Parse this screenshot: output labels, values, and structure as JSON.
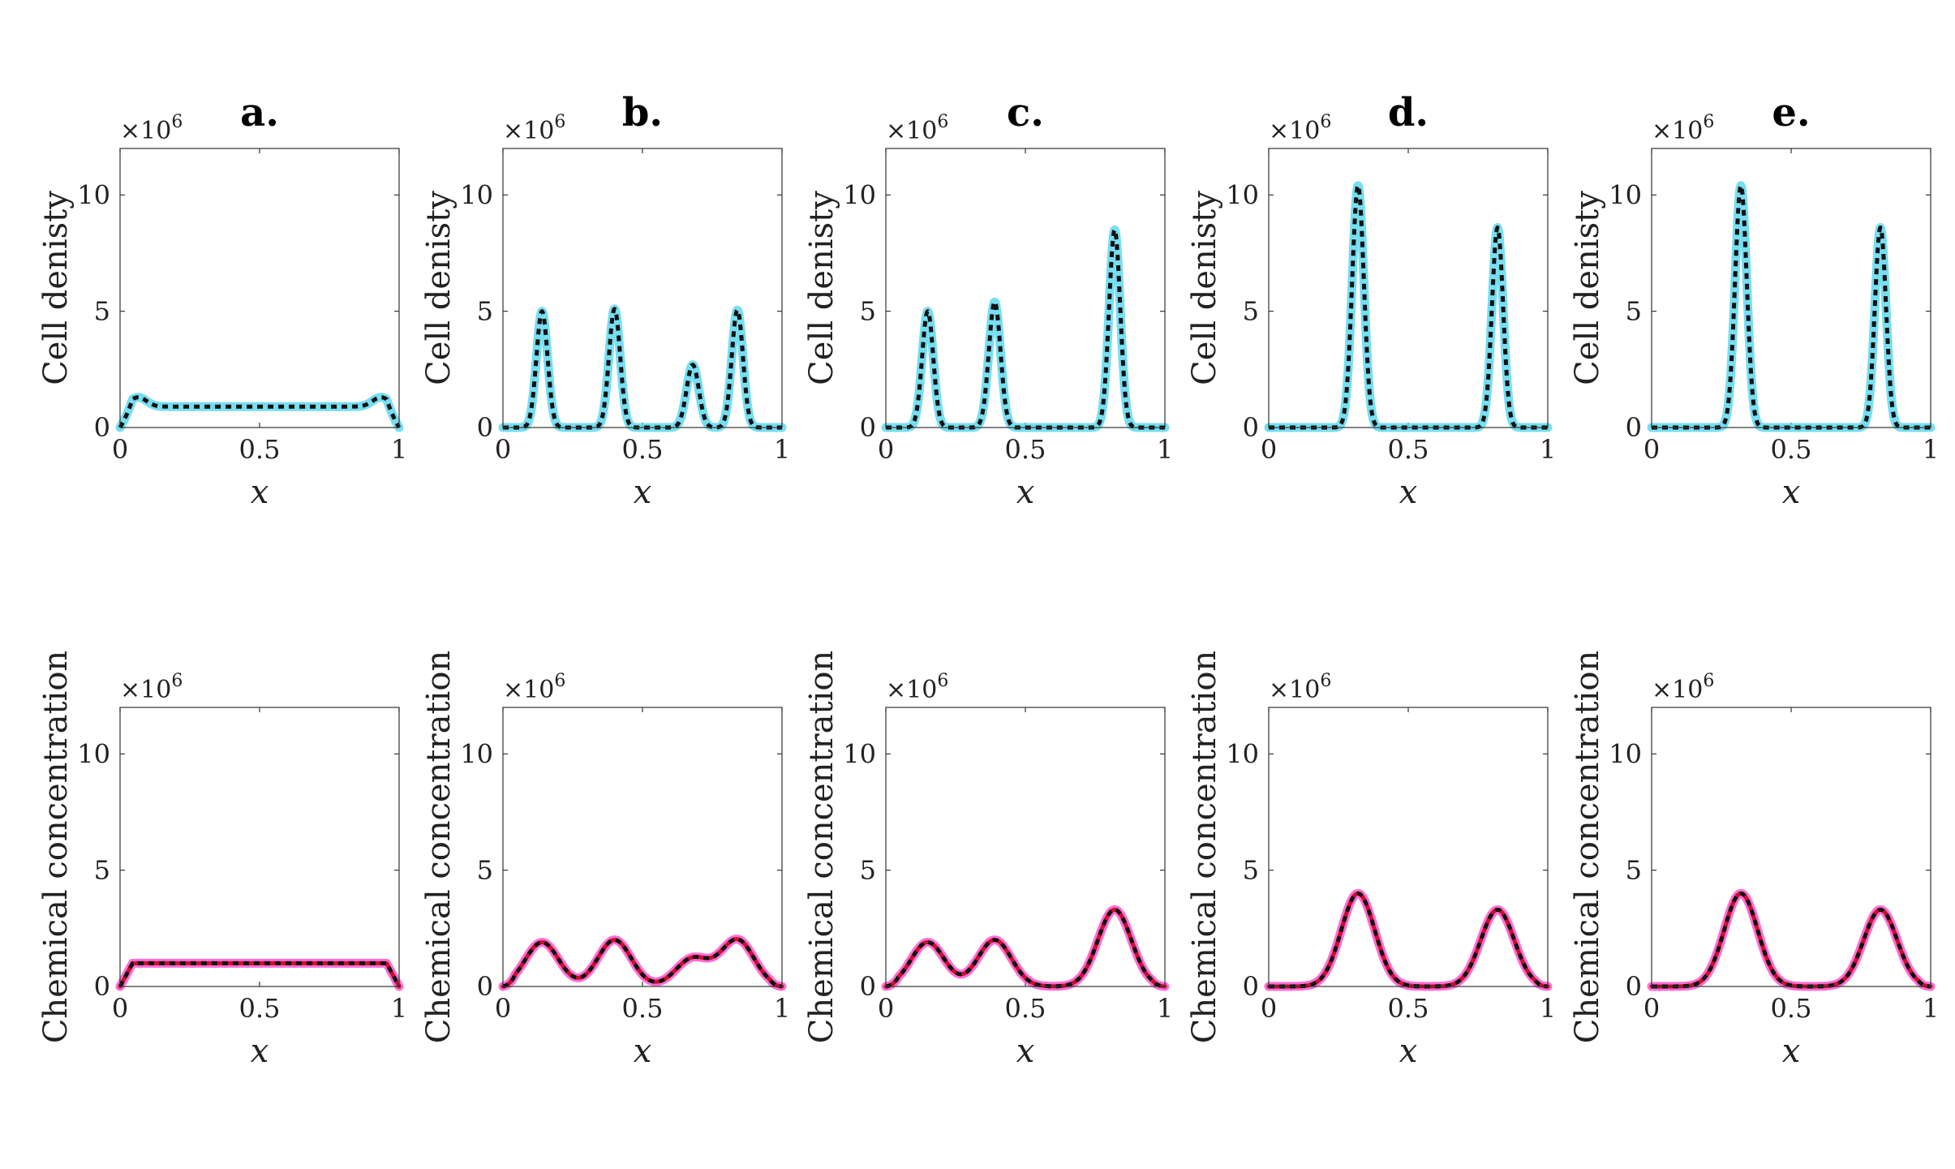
{
  "chart_data": {
    "type": "line",
    "layout": "2 rows x 5 columns of line plots",
    "shared": {
      "x_domain": [
        0,
        1
      ],
      "xticks": [
        0,
        0.5,
        1
      ],
      "xtick_labels": [
        "0",
        "0.5",
        "1"
      ],
      "xlabel": "x",
      "ylim": [
        0,
        12
      ],
      "yticks": [
        0,
        5,
        10
      ],
      "ytick_labels": [
        "0",
        "5",
        "10"
      ],
      "y_multiplier_label": "×10",
      "y_multiplier_exponent": "6"
    },
    "rows": [
      {
        "ylabel": "Cell denisty",
        "color_solid": "#5fd8ee",
        "color_dashed": "#111111",
        "panels": [
          {
            "title": "a.",
            "base": 0.9,
            "edge_bump": 1.3,
            "peaks": []
          },
          {
            "title": "b.",
            "base": 0.0,
            "edge_bump": 0,
            "peaks": [
              [
                0.14,
                5.0,
                0.02
              ],
              [
                0.4,
                5.1,
                0.02
              ],
              [
                0.68,
                2.7,
                0.022
              ],
              [
                0.84,
                5.05,
                0.02
              ]
            ]
          },
          {
            "title": "c.",
            "base": 0.0,
            "edge_bump": 0,
            "peaks": [
              [
                0.15,
                5.0,
                0.02
              ],
              [
                0.39,
                5.4,
                0.021
              ],
              [
                0.82,
                8.5,
                0.02
              ]
            ]
          },
          {
            "title": "d.",
            "base": 0.0,
            "edge_bump": 0,
            "peaks": [
              [
                0.32,
                10.4,
                0.021
              ],
              [
                0.82,
                8.6,
                0.02
              ]
            ]
          },
          {
            "title": "e.",
            "base": 0.0,
            "edge_bump": 0,
            "peaks": [
              [
                0.32,
                10.4,
                0.021
              ],
              [
                0.82,
                8.6,
                0.02
              ]
            ]
          }
        ]
      },
      {
        "ylabel": "Chemical concentration",
        "color_solid": "#ff55cc",
        "color_dashed": "#111111",
        "color_main": "#c8102e",
        "panels": [
          {
            "title": "a.",
            "base": 1.0,
            "edge_bump": 0,
            "peaks": []
          },
          {
            "title": "b.",
            "base": 0.0,
            "edge_bump": 0,
            "peaks": [
              [
                0.14,
                1.9,
                0.06
              ],
              [
                0.4,
                2.0,
                0.06
              ],
              [
                0.68,
                1.2,
                0.06
              ],
              [
                0.84,
                2.0,
                0.06
              ]
            ]
          },
          {
            "title": "c.",
            "base": 0.0,
            "edge_bump": 0,
            "peaks": [
              [
                0.15,
                1.9,
                0.06
              ],
              [
                0.39,
                2.0,
                0.06
              ],
              [
                0.82,
                3.3,
                0.06
              ]
            ]
          },
          {
            "title": "d.",
            "base": 0.0,
            "edge_bump": 0,
            "peaks": [
              [
                0.32,
                4.0,
                0.06
              ],
              [
                0.82,
                3.3,
                0.06
              ]
            ]
          },
          {
            "title": "e.",
            "base": 0.0,
            "edge_bump": 0,
            "peaks": [
              [
                0.32,
                4.0,
                0.06
              ],
              [
                0.82,
                3.3,
                0.06
              ]
            ]
          }
        ]
      }
    ]
  }
}
